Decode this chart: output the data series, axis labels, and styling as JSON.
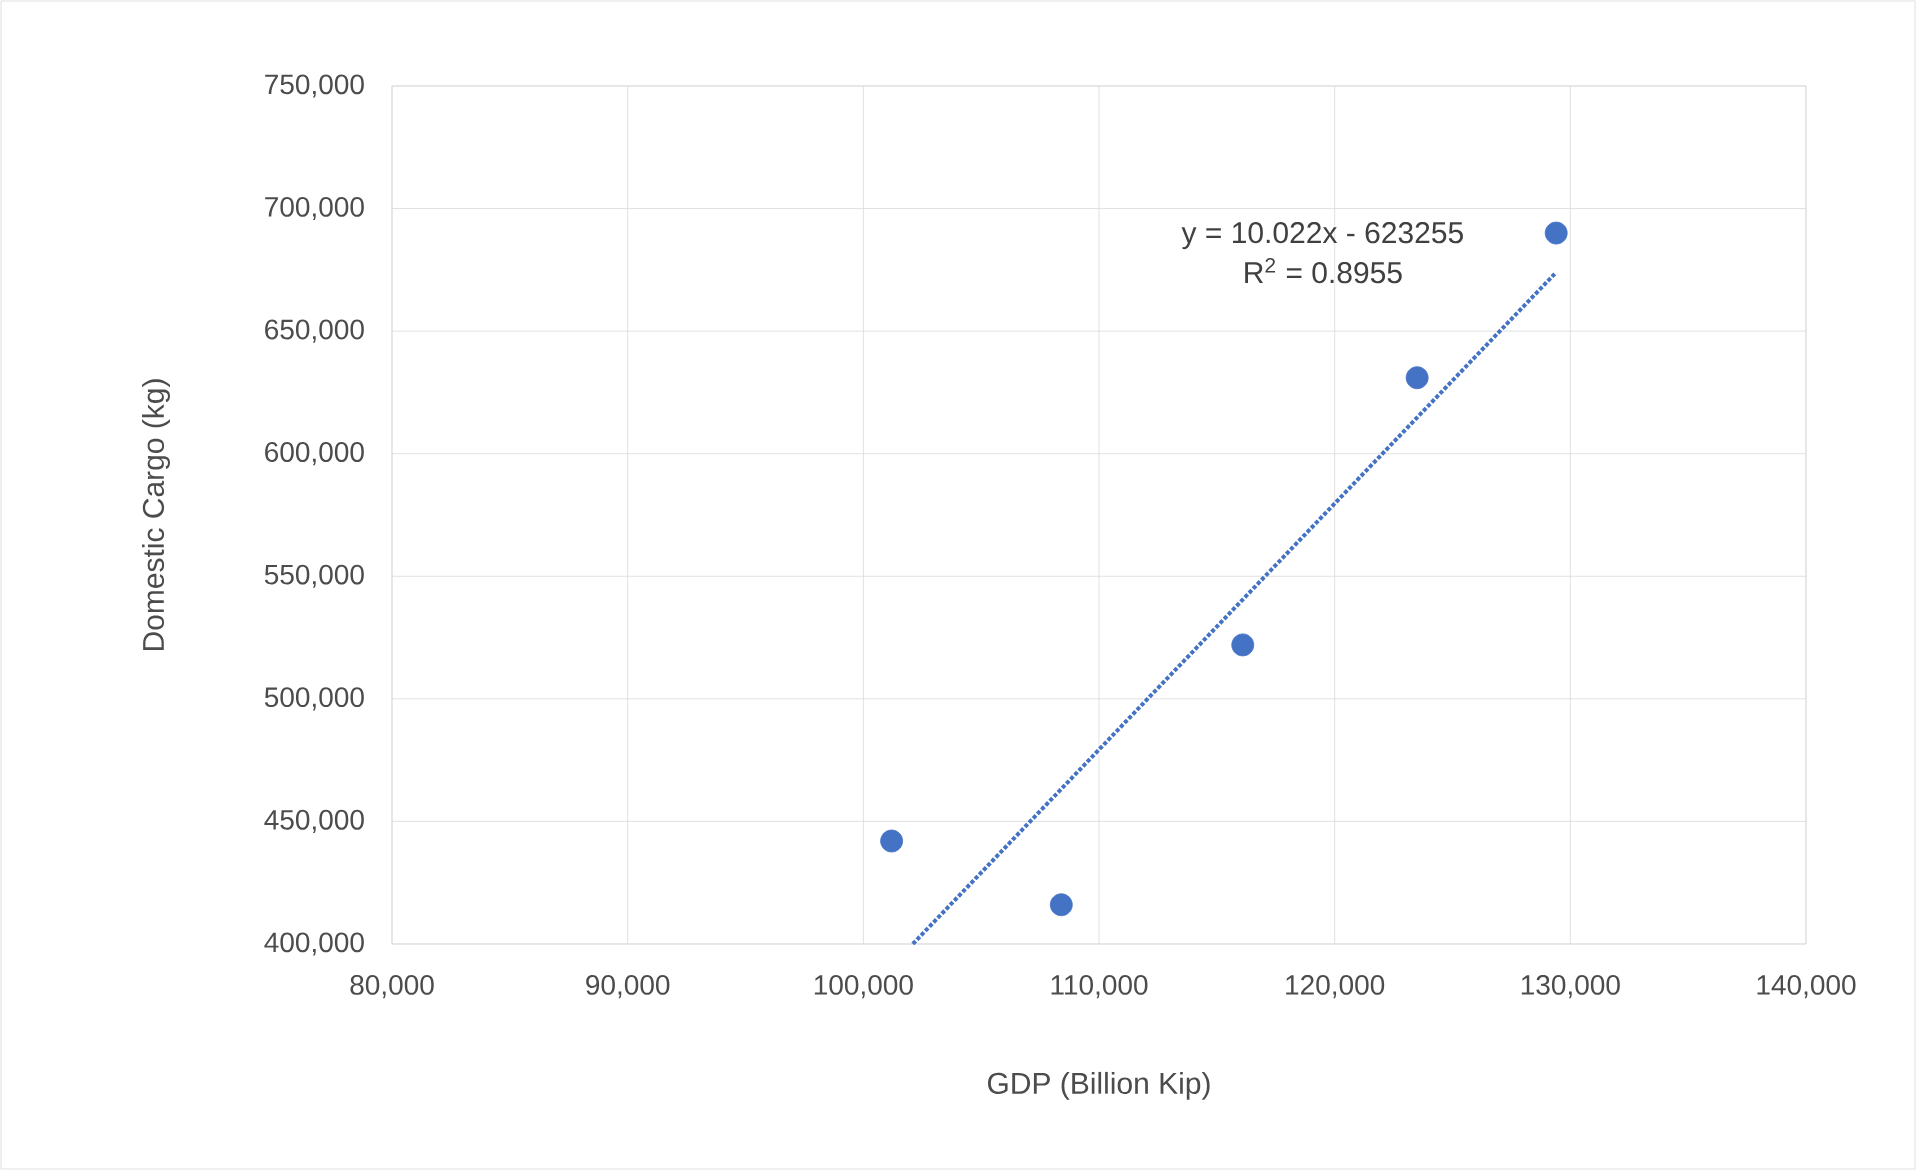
{
  "chart_data": {
    "type": "scatter",
    "xlabel": "GDP (Billion Kip)",
    "ylabel": "Domestic Cargo (kg)",
    "xlim": [
      80000,
      140000
    ],
    "ylim": [
      400000,
      750000
    ],
    "xticks": [
      {
        "value": 80000,
        "label": "80,000"
      },
      {
        "value": 90000,
        "label": "90,000"
      },
      {
        "value": 100000,
        "label": "100,000"
      },
      {
        "value": 110000,
        "label": "110,000"
      },
      {
        "value": 120000,
        "label": "120,000"
      },
      {
        "value": 130000,
        "label": "130,000"
      },
      {
        "value": 140000,
        "label": "140,000"
      }
    ],
    "yticks": [
      {
        "value": 400000,
        "label": "400,000"
      },
      {
        "value": 450000,
        "label": "450,000"
      },
      {
        "value": 500000,
        "label": "500,000"
      },
      {
        "value": 550000,
        "label": "550,000"
      },
      {
        "value": 600000,
        "label": "600,000"
      },
      {
        "value": 650000,
        "label": "650,000"
      },
      {
        "value": 700000,
        "label": "700,000"
      },
      {
        "value": 750000,
        "label": "750,000"
      }
    ],
    "grid": true,
    "marker": "circle",
    "series": [
      {
        "color": "#4472c4",
        "x": [
          101200,
          108400,
          116100,
          123500,
          129400
        ],
        "values": [
          442000,
          416000,
          522000,
          631000,
          690000
        ]
      },
      {
        "type": "line",
        "color": "#4472c4",
        "line_style": "dotted",
        "marker": "none",
        "x": [
          102100,
          129400
        ],
        "values": [
          400000,
          674000
        ]
      }
    ],
    "annotations": [
      "y = 10.022x - 623255",
      "R$^{2}$ = 0.8955"
    ]
  }
}
